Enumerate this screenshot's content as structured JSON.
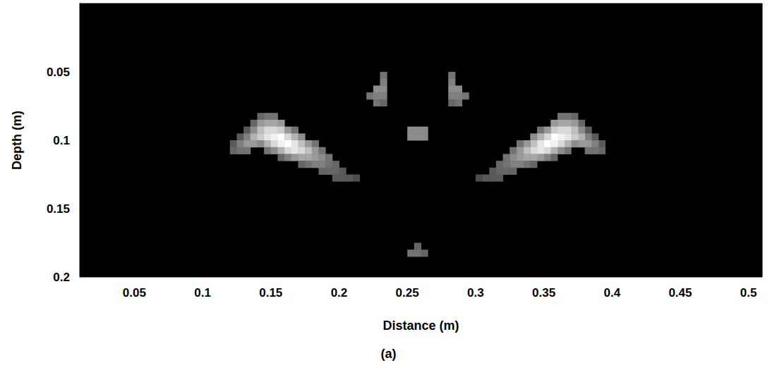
{
  "chart_data": {
    "type": "heatmap",
    "x_label": "Distance (m)",
    "y_label": "Depth (m)",
    "caption": "(a)",
    "xlim": [
      0.01,
      0.51
    ],
    "ylim": [
      0,
      0.2
    ],
    "xticks": [
      0.05,
      0.1,
      0.15,
      0.2,
      0.25,
      0.3,
      0.35,
      0.4,
      0.45,
      0.5
    ],
    "yticks": [
      0.05,
      0.1,
      0.15,
      0.2
    ],
    "grid": false,
    "cell_size": 0.005,
    "zlim": [
      0,
      1
    ],
    "colors": [
      "#000000",
      "#ffffff"
    ],
    "cells": [
      [
        0.2325,
        0.0525,
        0.45
      ],
      [
        0.2325,
        0.0575,
        0.5
      ],
      [
        0.2275,
        0.0625,
        0.55
      ],
      [
        0.2325,
        0.0625,
        0.55
      ],
      [
        0.2225,
        0.0675,
        0.45
      ],
      [
        0.2275,
        0.0675,
        0.5
      ],
      [
        0.2325,
        0.0675,
        0.5
      ],
      [
        0.2275,
        0.0725,
        0.45
      ],
      [
        0.2325,
        0.0725,
        0.4
      ],
      [
        0.2825,
        0.0525,
        0.45
      ],
      [
        0.2825,
        0.0575,
        0.5
      ],
      [
        0.2875,
        0.0625,
        0.55
      ],
      [
        0.2825,
        0.0625,
        0.55
      ],
      [
        0.2925,
        0.0675,
        0.45
      ],
      [
        0.2875,
        0.0675,
        0.5
      ],
      [
        0.2825,
        0.0675,
        0.5
      ],
      [
        0.2875,
        0.0725,
        0.45
      ],
      [
        0.2825,
        0.0725,
        0.4
      ],
      [
        0.2525,
        0.0925,
        0.55
      ],
      [
        0.2575,
        0.0925,
        0.55
      ],
      [
        0.2625,
        0.0925,
        0.55
      ],
      [
        0.2525,
        0.0975,
        0.55
      ],
      [
        0.2575,
        0.0975,
        0.55
      ],
      [
        0.2625,
        0.0975,
        0.55
      ],
      [
        0.2575,
        0.1775,
        0.4
      ],
      [
        0.2525,
        0.1825,
        0.45
      ],
      [
        0.2575,
        0.1825,
        0.45
      ],
      [
        0.2625,
        0.1825,
        0.4
      ],
      [
        0.1225,
        0.1025,
        0.35
      ],
      [
        0.1225,
        0.1075,
        0.4
      ],
      [
        0.1275,
        0.0975,
        0.35
      ],
      [
        0.1275,
        0.1025,
        0.5
      ],
      [
        0.1275,
        0.1075,
        0.45
      ],
      [
        0.1325,
        0.0925,
        0.35
      ],
      [
        0.1325,
        0.0975,
        0.5
      ],
      [
        0.1325,
        0.1025,
        0.6
      ],
      [
        0.1325,
        0.1075,
        0.45
      ],
      [
        0.1375,
        0.0875,
        0.4
      ],
      [
        0.1375,
        0.0925,
        0.55
      ],
      [
        0.1375,
        0.0975,
        0.7
      ],
      [
        0.1375,
        0.1025,
        0.6
      ],
      [
        0.1425,
        0.0825,
        0.4
      ],
      [
        0.1425,
        0.0875,
        0.6
      ],
      [
        0.1425,
        0.0925,
        0.75
      ],
      [
        0.1425,
        0.0975,
        0.8
      ],
      [
        0.1425,
        0.1025,
        0.55
      ],
      [
        0.1475,
        0.0825,
        0.45
      ],
      [
        0.1475,
        0.0875,
        0.65
      ],
      [
        0.1475,
        0.0925,
        0.85
      ],
      [
        0.1475,
        0.0975,
        0.9
      ],
      [
        0.1475,
        0.1025,
        0.7
      ],
      [
        0.1475,
        0.1075,
        0.45
      ],
      [
        0.1525,
        0.0825,
        0.45
      ],
      [
        0.1525,
        0.0875,
        0.65
      ],
      [
        0.1525,
        0.0925,
        0.85
      ],
      [
        0.1525,
        0.0975,
        0.95
      ],
      [
        0.1525,
        0.1025,
        0.85
      ],
      [
        0.1525,
        0.1075,
        0.55
      ],
      [
        0.1575,
        0.0875,
        0.6
      ],
      [
        0.1575,
        0.0925,
        0.8
      ],
      [
        0.1575,
        0.0975,
        1.0
      ],
      [
        0.1575,
        0.1025,
        0.95
      ],
      [
        0.1575,
        0.1075,
        0.7
      ],
      [
        0.1575,
        0.1125,
        0.4
      ],
      [
        0.1625,
        0.0925,
        0.6
      ],
      [
        0.1625,
        0.0975,
        0.85
      ],
      [
        0.1625,
        0.1025,
        1.0
      ],
      [
        0.1625,
        0.1075,
        0.85
      ],
      [
        0.1625,
        0.1125,
        0.5
      ],
      [
        0.1675,
        0.0925,
        0.45
      ],
      [
        0.1675,
        0.0975,
        0.7
      ],
      [
        0.1675,
        0.1025,
        0.9
      ],
      [
        0.1675,
        0.1075,
        0.9
      ],
      [
        0.1675,
        0.1125,
        0.6
      ],
      [
        0.1725,
        0.0975,
        0.55
      ],
      [
        0.1725,
        0.1025,
        0.75
      ],
      [
        0.1725,
        0.1075,
        0.85
      ],
      [
        0.1725,
        0.1125,
        0.65
      ],
      [
        0.1725,
        0.1175,
        0.4
      ],
      [
        0.1775,
        0.1025,
        0.6
      ],
      [
        0.1775,
        0.1075,
        0.75
      ],
      [
        0.1775,
        0.1125,
        0.65
      ],
      [
        0.1775,
        0.1175,
        0.45
      ],
      [
        0.1825,
        0.1025,
        0.45
      ],
      [
        0.1825,
        0.1075,
        0.6
      ],
      [
        0.1825,
        0.1125,
        0.6
      ],
      [
        0.1825,
        0.1175,
        0.5
      ],
      [
        0.1875,
        0.1075,
        0.45
      ],
      [
        0.1875,
        0.1125,
        0.55
      ],
      [
        0.1875,
        0.1175,
        0.5
      ],
      [
        0.1875,
        0.1225,
        0.4
      ],
      [
        0.1925,
        0.1125,
        0.45
      ],
      [
        0.1925,
        0.1175,
        0.45
      ],
      [
        0.1925,
        0.1225,
        0.4
      ],
      [
        0.1975,
        0.1175,
        0.4
      ],
      [
        0.1975,
        0.1225,
        0.4
      ],
      [
        0.1975,
        0.1275,
        0.35
      ],
      [
        0.2025,
        0.1225,
        0.35
      ],
      [
        0.2025,
        0.1275,
        0.35
      ],
      [
        0.2075,
        0.1275,
        0.35
      ],
      [
        0.2125,
        0.1275,
        0.3
      ],
      [
        0.3925,
        0.1025,
        0.35
      ],
      [
        0.3925,
        0.1075,
        0.4
      ],
      [
        0.3875,
        0.0975,
        0.35
      ],
      [
        0.3875,
        0.1025,
        0.5
      ],
      [
        0.3875,
        0.1075,
        0.45
      ],
      [
        0.3825,
        0.0925,
        0.35
      ],
      [
        0.3825,
        0.0975,
        0.5
      ],
      [
        0.3825,
        0.1025,
        0.6
      ],
      [
        0.3825,
        0.1075,
        0.45
      ],
      [
        0.3775,
        0.0875,
        0.4
      ],
      [
        0.3775,
        0.0925,
        0.55
      ],
      [
        0.3775,
        0.0975,
        0.7
      ],
      [
        0.3775,
        0.1025,
        0.6
      ],
      [
        0.3725,
        0.0825,
        0.4
      ],
      [
        0.3725,
        0.0875,
        0.6
      ],
      [
        0.3725,
        0.0925,
        0.75
      ],
      [
        0.3725,
        0.0975,
        0.8
      ],
      [
        0.3725,
        0.1025,
        0.55
      ],
      [
        0.3675,
        0.0825,
        0.45
      ],
      [
        0.3675,
        0.0875,
        0.65
      ],
      [
        0.3675,
        0.0925,
        0.85
      ],
      [
        0.3675,
        0.0975,
        0.9
      ],
      [
        0.3675,
        0.1025,
        0.7
      ],
      [
        0.3675,
        0.1075,
        0.45
      ],
      [
        0.3625,
        0.0825,
        0.45
      ],
      [
        0.3625,
        0.0875,
        0.65
      ],
      [
        0.3625,
        0.0925,
        0.85
      ],
      [
        0.3625,
        0.0975,
        0.95
      ],
      [
        0.3625,
        0.1025,
        0.85
      ],
      [
        0.3625,
        0.1075,
        0.55
      ],
      [
        0.3575,
        0.0875,
        0.6
      ],
      [
        0.3575,
        0.0925,
        0.8
      ],
      [
        0.3575,
        0.0975,
        1.0
      ],
      [
        0.3575,
        0.1025,
        0.95
      ],
      [
        0.3575,
        0.1075,
        0.7
      ],
      [
        0.3575,
        0.1125,
        0.4
      ],
      [
        0.3525,
        0.0925,
        0.6
      ],
      [
        0.3525,
        0.0975,
        0.85
      ],
      [
        0.3525,
        0.1025,
        1.0
      ],
      [
        0.3525,
        0.1075,
        0.85
      ],
      [
        0.3525,
        0.1125,
        0.5
      ],
      [
        0.3475,
        0.0925,
        0.45
      ],
      [
        0.3475,
        0.0975,
        0.7
      ],
      [
        0.3475,
        0.1025,
        0.9
      ],
      [
        0.3475,
        0.1075,
        0.9
      ],
      [
        0.3475,
        0.1125,
        0.6
      ],
      [
        0.3425,
        0.0975,
        0.55
      ],
      [
        0.3425,
        0.1025,
        0.75
      ],
      [
        0.3425,
        0.1075,
        0.85
      ],
      [
        0.3425,
        0.1125,
        0.65
      ],
      [
        0.3425,
        0.1175,
        0.4
      ],
      [
        0.3375,
        0.1025,
        0.6
      ],
      [
        0.3375,
        0.1075,
        0.75
      ],
      [
        0.3375,
        0.1125,
        0.65
      ],
      [
        0.3375,
        0.1175,
        0.45
      ],
      [
        0.3325,
        0.1025,
        0.45
      ],
      [
        0.3325,
        0.1075,
        0.6
      ],
      [
        0.3325,
        0.1125,
        0.6
      ],
      [
        0.3325,
        0.1175,
        0.5
      ],
      [
        0.3275,
        0.1075,
        0.45
      ],
      [
        0.3275,
        0.1125,
        0.55
      ],
      [
        0.3275,
        0.1175,
        0.5
      ],
      [
        0.3275,
        0.1225,
        0.4
      ],
      [
        0.3225,
        0.1125,
        0.45
      ],
      [
        0.3225,
        0.1175,
        0.45
      ],
      [
        0.3225,
        0.1225,
        0.4
      ],
      [
        0.3175,
        0.1175,
        0.4
      ],
      [
        0.3175,
        0.1225,
        0.4
      ],
      [
        0.3175,
        0.1275,
        0.35
      ],
      [
        0.3125,
        0.1225,
        0.35
      ],
      [
        0.3125,
        0.1275,
        0.35
      ],
      [
        0.3075,
        0.1275,
        0.35
      ],
      [
        0.3025,
        0.1275,
        0.3
      ]
    ]
  }
}
